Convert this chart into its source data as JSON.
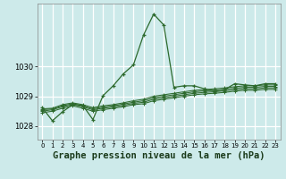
{
  "xlabel": "Graphe pression niveau de la mer (hPa)",
  "background_color": "#cdeaea",
  "grid_color": "#ffffff",
  "line_color": "#2d6a2d",
  "ylim": [
    1027.55,
    1032.1
  ],
  "xlim": [
    -0.5,
    23.5
  ],
  "yticks": [
    1028,
    1029,
    1030
  ],
  "xticks": [
    0,
    1,
    2,
    3,
    4,
    5,
    6,
    7,
    8,
    9,
    10,
    11,
    12,
    13,
    14,
    15,
    16,
    17,
    18,
    19,
    20,
    21,
    22,
    23
  ],
  "series": [
    [
      1028.62,
      1028.18,
      1028.48,
      1028.72,
      1028.7,
      1028.22,
      1029.02,
      1029.35,
      1029.75,
      1030.05,
      1031.05,
      1031.75,
      1031.38,
      1029.3,
      1029.35,
      1029.35,
      1029.25,
      1029.18,
      1029.22,
      1029.42,
      1029.38,
      1029.35,
      1029.42,
      1029.42
    ],
    [
      1028.58,
      1028.6,
      1028.72,
      1028.78,
      1028.72,
      1028.62,
      1028.68,
      1028.72,
      1028.78,
      1028.85,
      1028.9,
      1029.0,
      1029.05,
      1029.1,
      1029.15,
      1029.2,
      1029.22,
      1029.25,
      1029.28,
      1029.32,
      1029.35,
      1029.35,
      1029.38,
      1029.38
    ],
    [
      1028.55,
      1028.58,
      1028.68,
      1028.75,
      1028.68,
      1028.58,
      1028.64,
      1028.68,
      1028.74,
      1028.8,
      1028.85,
      1028.95,
      1029.0,
      1029.05,
      1029.1,
      1029.15,
      1029.18,
      1029.2,
      1029.23,
      1029.27,
      1029.3,
      1029.3,
      1029.33,
      1029.33
    ],
    [
      1028.5,
      1028.55,
      1028.65,
      1028.72,
      1028.65,
      1028.55,
      1028.6,
      1028.64,
      1028.7,
      1028.76,
      1028.8,
      1028.9,
      1028.95,
      1029.0,
      1029.05,
      1029.1,
      1029.13,
      1029.15,
      1029.18,
      1029.22,
      1029.25,
      1029.25,
      1029.28,
      1029.28
    ],
    [
      1028.45,
      1028.5,
      1028.6,
      1028.68,
      1028.6,
      1028.5,
      1028.55,
      1028.6,
      1028.65,
      1028.72,
      1028.75,
      1028.85,
      1028.9,
      1028.95,
      1029.0,
      1029.05,
      1029.08,
      1029.1,
      1029.13,
      1029.17,
      1029.2,
      1029.2,
      1029.23,
      1029.23
    ]
  ],
  "font_size_xlabel": 7.5,
  "font_size_ytick": 6.0,
  "font_size_xtick": 5.0
}
